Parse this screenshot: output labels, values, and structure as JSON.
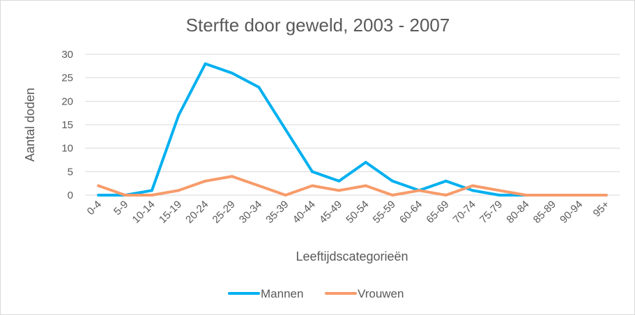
{
  "chart_data": {
    "type": "line",
    "title": "Sterfte door geweld, 2003 - 2007",
    "xlabel": "Leeftijdscategorieën",
    "ylabel": "Aantal doden",
    "ylim": [
      0,
      30
    ],
    "yticks": [
      "0",
      "5",
      "10",
      "15",
      "20",
      "25",
      "30"
    ],
    "grid": true,
    "legend_position": "bottom",
    "categories": [
      "0-4",
      "5-9",
      "10-14",
      "15-19",
      "20-24",
      "25-29",
      "30-34",
      "35-39",
      "40-44",
      "45-49",
      "50-54",
      "55-59",
      "60-64",
      "65-69",
      "70-74",
      "75-79",
      "80-84",
      "85-89",
      "90-94",
      "95+"
    ],
    "series": [
      {
        "name": "Mannen",
        "color": "#00b0f0",
        "values": [
          0,
          0,
          1,
          17,
          28,
          26,
          23,
          14,
          5,
          3,
          7,
          3,
          1,
          3,
          1,
          0,
          0,
          0,
          0,
          0
        ]
      },
      {
        "name": "Vrouwen",
        "color": "#f79b6a",
        "values": [
          2,
          0,
          0,
          1,
          3,
          4,
          2,
          0,
          2,
          1,
          2,
          0,
          1,
          0,
          2,
          1,
          0,
          0,
          0,
          0
        ]
      }
    ]
  }
}
